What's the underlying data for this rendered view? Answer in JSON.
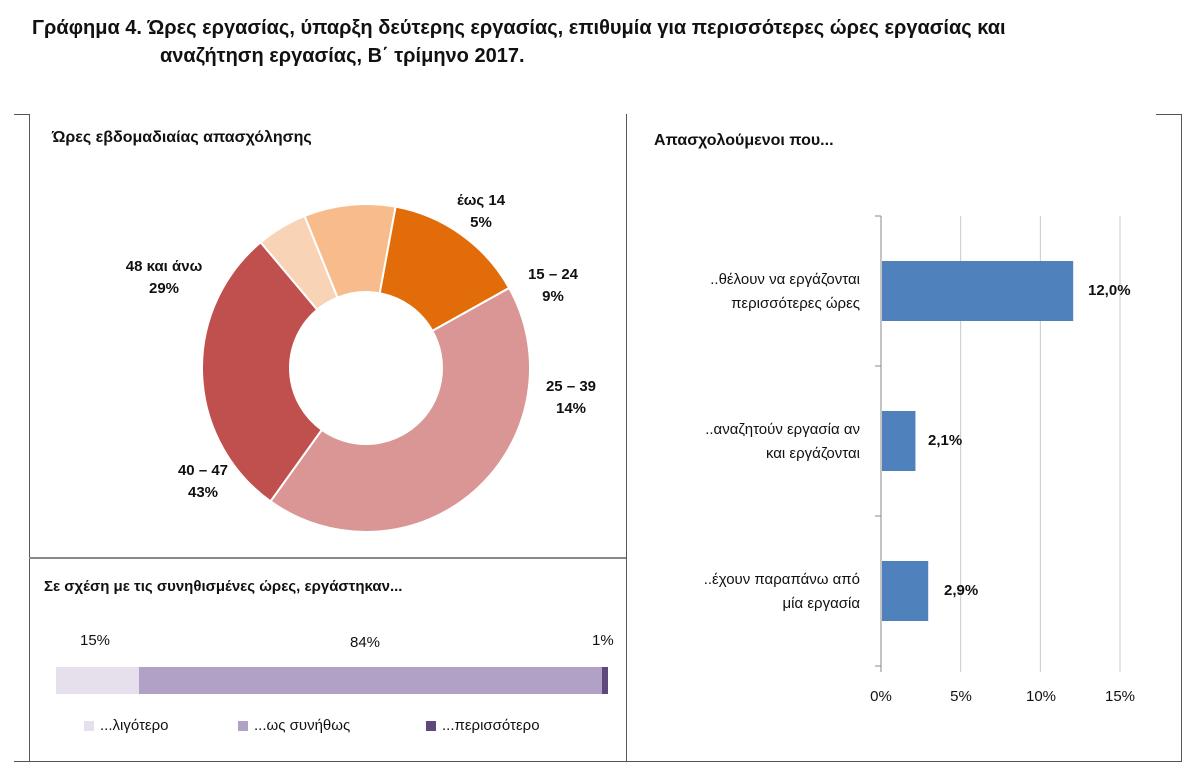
{
  "title": {
    "line1": "Γράφημα 4. Ώρες εργασίας, ύπαρξη δεύτερης εργασίας, επιθυμία για περισσότερες ώρες εργασίας και",
    "line2": "αναζήτηση εργασίας, Β΄ τρίμηνο 2017."
  },
  "chart_data": [
    {
      "type": "pie",
      "variant": "donut",
      "title": "Ώρες εβδομαδιαίας απασχόλησης",
      "slices": [
        {
          "label": "έως 14",
          "value": 5,
          "value_label": "5%",
          "color": "#f8d3b6"
        },
        {
          "label": "15 – 24",
          "value": 9,
          "value_label": "9%",
          "color": "#f8bc8c"
        },
        {
          "label": "25 – 39",
          "value": 14,
          "value_label": "14%",
          "color": "#e36c0a"
        },
        {
          "label": "40 – 47",
          "value": 43,
          "value_label": "43%",
          "color": "#d99694"
        },
        {
          "label": "48 και άνω",
          "value": 29,
          "value_label": "29%",
          "color": "#c0504d"
        }
      ]
    },
    {
      "type": "bar",
      "orientation": "horizontal",
      "stacked": true,
      "title": "Σε σχέση με τις συνηθισμένες ώρες, εργάστηκαν...",
      "series": [
        {
          "name": "...λιγότερο",
          "value": 15,
          "value_label": "15%",
          "color": "#e6e0ec"
        },
        {
          "name": "...ως συνήθως",
          "value": 84,
          "value_label": "84%",
          "color": "#b2a1c7"
        },
        {
          "name": "...περισσότερο",
          "value": 1,
          "value_label": "1%",
          "color": "#5f497a"
        }
      ],
      "legend_position": "bottom"
    },
    {
      "type": "bar",
      "orientation": "horizontal",
      "title": "Απασχολούμενοι που...",
      "categories": [
        [
          "..θέλουν να εργάζονται",
          "περισσότερες ώρες"
        ],
        [
          "..αναζητούν εργασία αν",
          "και εργάζονται"
        ],
        [
          "..έχουν παραπάνω από",
          "μία εργασία"
        ]
      ],
      "values": [
        12.0,
        2.1,
        2.9
      ],
      "value_labels": [
        "12,0%",
        "2,1%",
        "2,9%"
      ],
      "xlim": [
        0,
        15
      ],
      "xticks": [
        "0%",
        "5%",
        "10%",
        "15%"
      ],
      "color": "#4f81bd",
      "grid": true
    }
  ]
}
